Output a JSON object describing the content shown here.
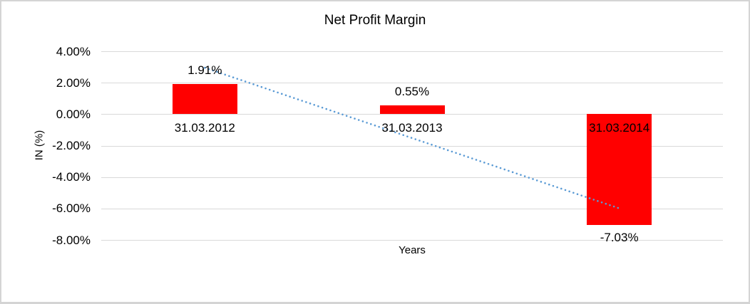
{
  "colors": {
    "bar": "#FF0000",
    "trendline": "#5B9BD5",
    "gridline": "#D9D9D9",
    "frame": "#D4D4D4",
    "text": "#000000"
  },
  "chart_data": {
    "type": "bar",
    "title": "Net Profit Margin",
    "xlabel": "Years",
    "ylabel": "IN (%)",
    "categories": [
      "31.03.2012",
      "31.03.2013",
      "31.03.2014"
    ],
    "values": [
      1.91,
      0.55,
      -7.03
    ],
    "value_labels": [
      "1.91%",
      "0.55%",
      "-7.03%"
    ],
    "ylim": [
      -8,
      4
    ],
    "ytick_step": 2,
    "yticks": [
      {
        "v": 4,
        "label": "4.00%"
      },
      {
        "v": 2,
        "label": "2.00%"
      },
      {
        "v": 0,
        "label": "0.00%"
      },
      {
        "v": -2,
        "label": "-2.00%"
      },
      {
        "v": -4,
        "label": "-4.00%"
      },
      {
        "v": -6,
        "label": "-6.00%"
      },
      {
        "v": -8,
        "label": "-8.00%"
      }
    ],
    "grid": true,
    "legend": false,
    "trendline": {
      "type": "linear",
      "style": "round-dotted",
      "start_value": 2.95,
      "end_value": -5.99
    }
  }
}
